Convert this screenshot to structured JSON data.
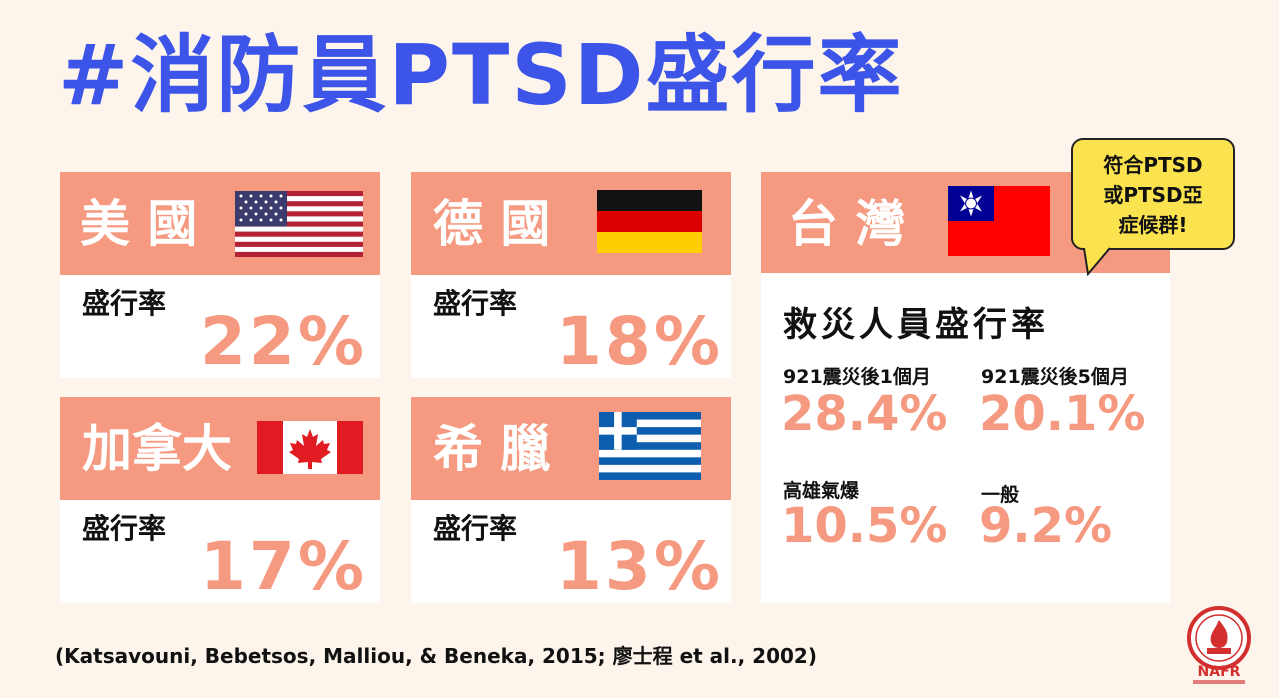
{
  "title": "#消防員PTSD盛行率",
  "colors": {
    "title": "#3c55e8",
    "accent": "#f59a80",
    "bubble": "#fbe34f",
    "background": "#fdf5eb"
  },
  "cards": {
    "usa": {
      "country": "美 國",
      "label": "盛行率",
      "value": "22%",
      "flag": "usa-flag-icon"
    },
    "germany": {
      "country": "德 國",
      "label": "盛行率",
      "value": "18%",
      "flag": "germany-flag-icon"
    },
    "canada": {
      "country": "加拿大",
      "label": "盛行率",
      "value": "17%",
      "flag": "canada-flag-icon"
    },
    "greece": {
      "country": "希 臘",
      "label": "盛行率",
      "value": "13%",
      "flag": "greece-flag-icon"
    }
  },
  "taiwan": {
    "country": "台 灣",
    "flag": "taiwan-flag-icon",
    "subtitle": "救災人員盛行率",
    "stats": [
      {
        "label": "921震災後1個月",
        "value": "28.4%"
      },
      {
        "label": "921震災後5個月",
        "value": "20.1%"
      },
      {
        "label": "高雄氣爆",
        "value": "10.5%"
      },
      {
        "label": "一般",
        "value": "9.2%"
      }
    ]
  },
  "bubble": {
    "text": "符合PTSD\n或PTSD亞\n症候群!"
  },
  "citation": "(Katsavouni, Bebetsos, Malliou, & Beneka, 2015; 廖士程 et al., 2002)",
  "logo": {
    "text": "NAFR",
    "icon": "nafr-logo-icon"
  }
}
